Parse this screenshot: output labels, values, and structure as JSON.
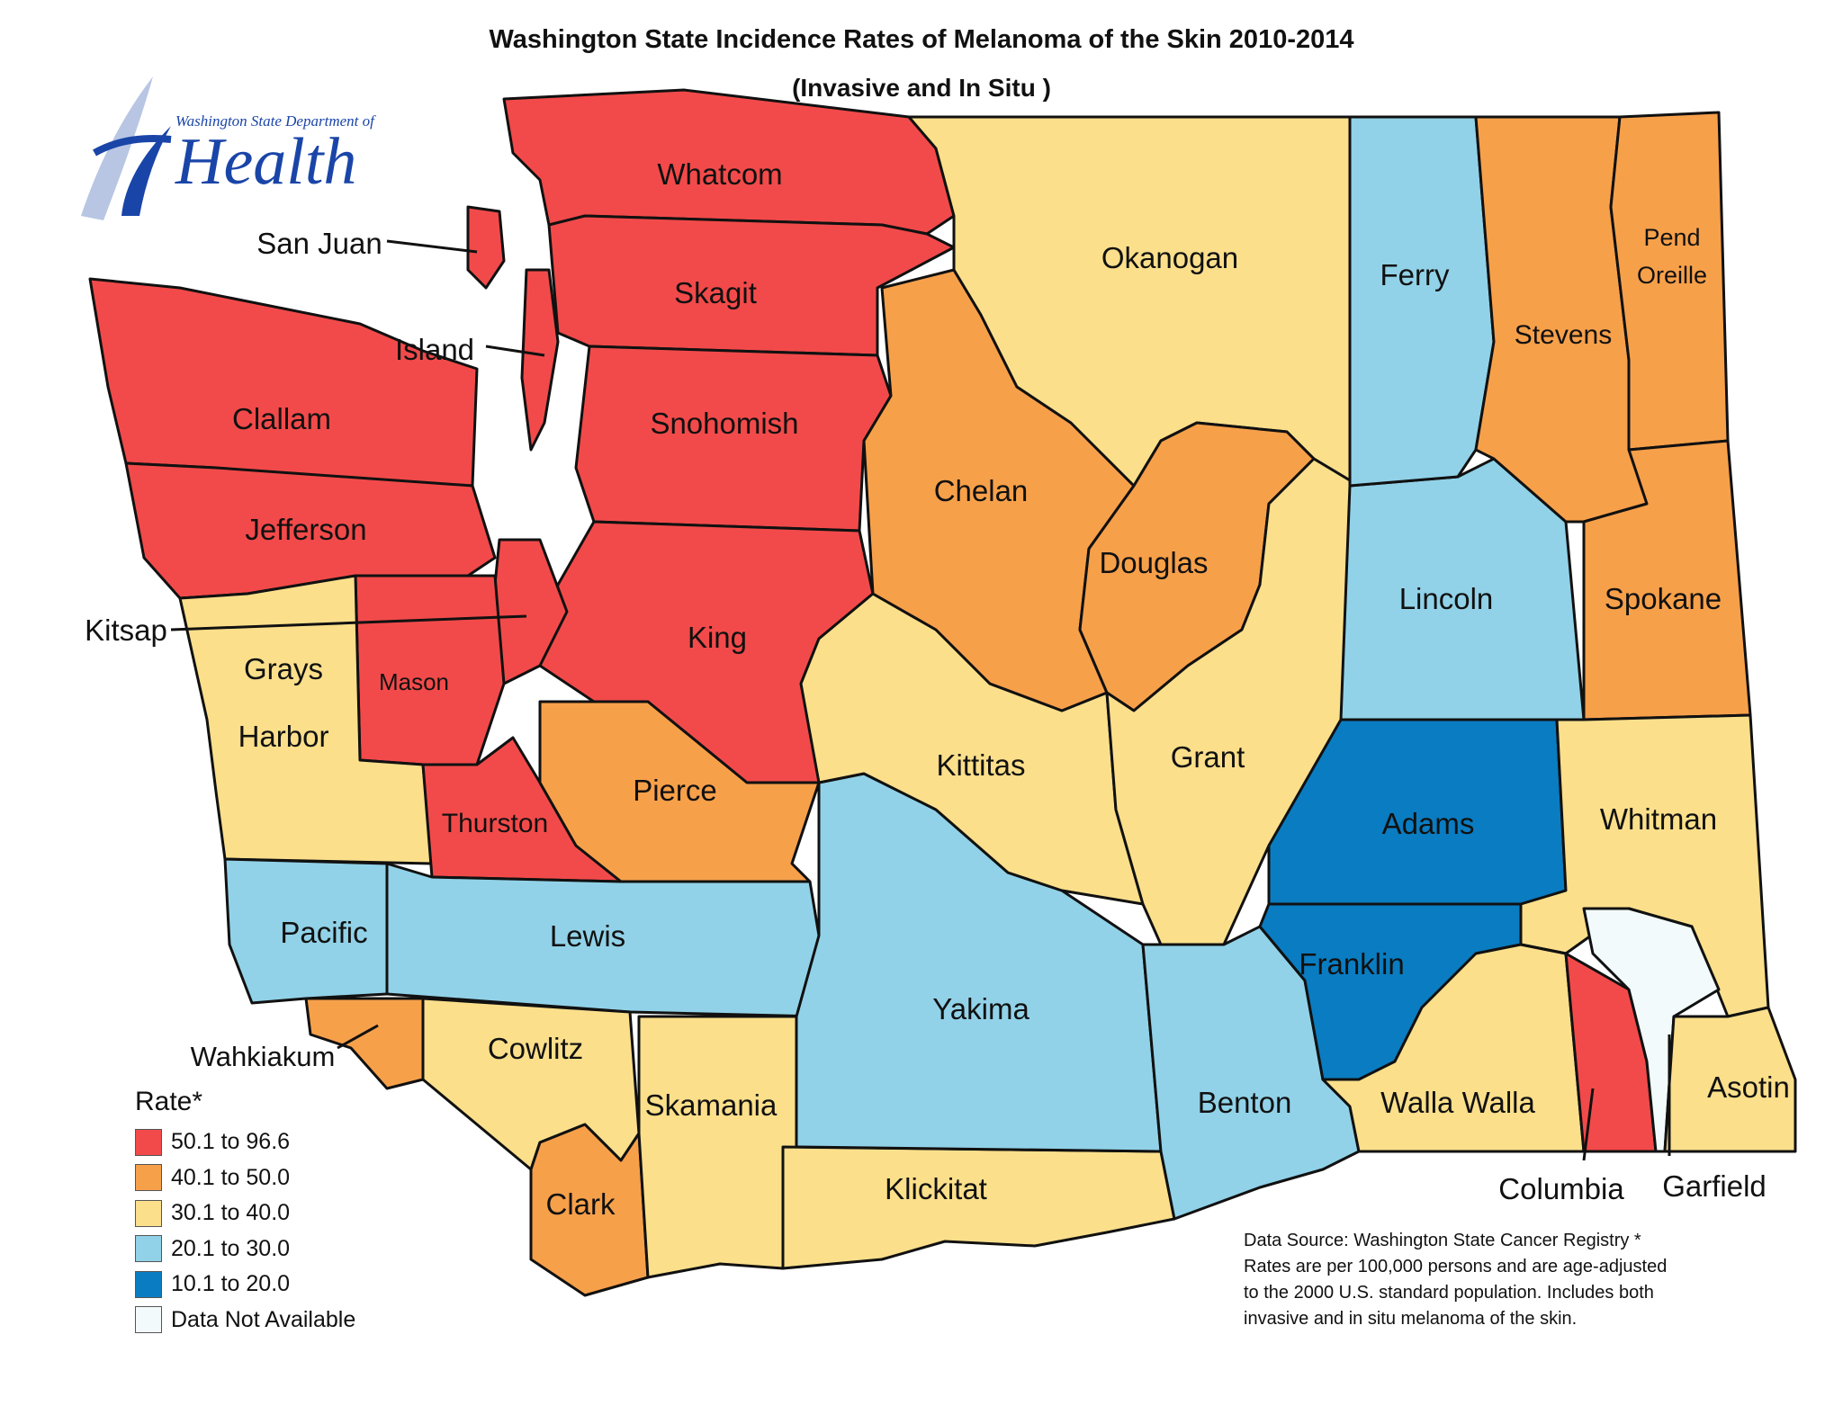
{
  "title": "Washington State Incidence Rates of Melanoma of the Skin 2010-2014",
  "subtitle": "(Invasive and In Situ )",
  "logo": {
    "small_text": "Washington State Department of",
    "big_text": "Health",
    "icon": "health-logo-icon"
  },
  "legend": {
    "title": "Rate*",
    "items": [
      {
        "label": "50.1 to 96.6",
        "color": "#f24a4a"
      },
      {
        "label": "40.1 to 50.0",
        "color": "#f7a04a"
      },
      {
        "label": "30.1 to 40.0",
        "color": "#fbdf8b"
      },
      {
        "label": "20.1 to 30.0",
        "color": "#91d2e8"
      },
      {
        "label": "10.1 to 20.0",
        "color": "#0a7cc1"
      },
      {
        "label": "Data Not Available",
        "color": "#f2fafc"
      }
    ]
  },
  "source_note": {
    "line1": "Data Source: Washington State Cancer Registry *",
    "line2": "Rates are per 100,000 persons and are age-adjusted",
    "line3": "to the 2000 U.S. standard population. Includes both",
    "line4": "invasive and in situ melanoma of the skin."
  },
  "counties": {
    "whatcom": {
      "name": "Whatcom",
      "rate_class": "50.1 to 96.6"
    },
    "san_juan": {
      "name": "San Juan",
      "rate_class": "50.1 to 96.6"
    },
    "skagit": {
      "name": "Skagit",
      "rate_class": "50.1 to 96.6"
    },
    "island": {
      "name": "Island",
      "rate_class": "50.1 to 96.6"
    },
    "clallam": {
      "name": "Clallam",
      "rate_class": "50.1 to 96.6"
    },
    "snohomish": {
      "name": "Snohomish",
      "rate_class": "50.1 to 96.6"
    },
    "jefferson": {
      "name": "Jefferson",
      "rate_class": "50.1 to 96.6"
    },
    "kitsap": {
      "name": "Kitsap",
      "rate_class": "50.1 to 96.6"
    },
    "king": {
      "name": "King",
      "rate_class": "50.1 to 96.6"
    },
    "mason": {
      "name": "Mason",
      "rate_class": "50.1 to 96.6"
    },
    "grays_harbor": {
      "name1": "Grays",
      "name2": "Harbor",
      "rate_class": "30.1 to 40.0"
    },
    "thurston": {
      "name": "Thurston",
      "rate_class": "50.1 to 96.6"
    },
    "pierce": {
      "name": "Pierce",
      "rate_class": "40.1 to 50.0"
    },
    "pacific": {
      "name": "Pacific",
      "rate_class": "20.1 to 30.0"
    },
    "lewis": {
      "name": "Lewis",
      "rate_class": "20.1 to 30.0"
    },
    "wahkiakum": {
      "name": "Wahkiakum",
      "rate_class": "40.1 to 50.0"
    },
    "cowlitz": {
      "name": "Cowlitz",
      "rate_class": "30.1 to 40.0"
    },
    "clark": {
      "name": "Clark",
      "rate_class": "40.1 to 50.0"
    },
    "skamania": {
      "name": "Skamania",
      "rate_class": "30.1 to 40.0"
    },
    "klickitat": {
      "name": "Klickitat",
      "rate_class": "30.1 to 40.0"
    },
    "yakima": {
      "name": "Yakima",
      "rate_class": "20.1 to 30.0"
    },
    "kittitas": {
      "name": "Kittitas",
      "rate_class": "30.1 to 40.0"
    },
    "chelan": {
      "name": "Chelan",
      "rate_class": "40.1 to 50.0"
    },
    "okanogan": {
      "name": "Okanogan",
      "rate_class": "30.1 to 40.0"
    },
    "douglas": {
      "name": "Douglas",
      "rate_class": "40.1 to 50.0"
    },
    "grant": {
      "name": "Grant",
      "rate_class": "30.1 to 40.0"
    },
    "benton": {
      "name": "Benton",
      "rate_class": "20.1 to 30.0"
    },
    "franklin": {
      "name": "Franklin",
      "rate_class": "10.1 to 20.0"
    },
    "adams": {
      "name": "Adams",
      "rate_class": "10.1 to 20.0"
    },
    "ferry": {
      "name": "Ferry",
      "rate_class": "20.1 to 30.0"
    },
    "lincoln": {
      "name": "Lincoln",
      "rate_class": "20.1 to 30.0"
    },
    "stevens": {
      "name": "Stevens",
      "rate_class": "40.1 to 50.0"
    },
    "pend_oreille": {
      "name1": "Pend",
      "name2": "Oreille",
      "rate_class": "40.1 to 50.0"
    },
    "spokane": {
      "name": "Spokane",
      "rate_class": "40.1 to 50.0"
    },
    "whitman": {
      "name": "Whitman",
      "rate_class": "30.1 to 40.0"
    },
    "walla_walla": {
      "name": "Walla Walla",
      "rate_class": "30.1 to 40.0"
    },
    "columbia": {
      "name": "Columbia",
      "rate_class": "50.1 to 96.6"
    },
    "garfield": {
      "name": "Garfield",
      "rate_class": "Data Not Available"
    },
    "asotin": {
      "name": "Asotin",
      "rate_class": "30.1 to 40.0"
    }
  },
  "colors": {
    "red": "#f24a4a",
    "orange": "#f7a04a",
    "yellow": "#fbdf8b",
    "light_blue": "#91d2e8",
    "dark_blue": "#0a7cc1",
    "na": "#f2fafc"
  }
}
